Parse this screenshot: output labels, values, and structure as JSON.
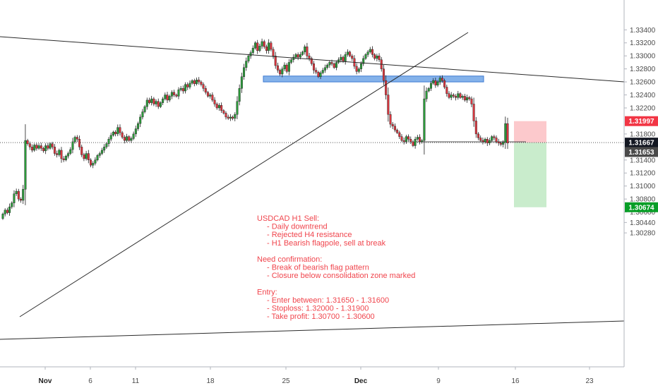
{
  "chart_data": {
    "type": "candlestick",
    "symbol": "USDCAD",
    "timeframe": "H1",
    "y_range": [
      1.282,
      1.3362
    ],
    "y_ticks": [
      "1.33400",
      "1.33200",
      "1.33000",
      "1.32800",
      "1.32600",
      "1.32400",
      "1.32200",
      "1.31800",
      "1.31400",
      "1.31200",
      "1.31000",
      "1.30800",
      "1.30600",
      "1.30440",
      "1.30280"
    ],
    "x_ticks": [
      {
        "label": "Nov",
        "bold": true
      },
      {
        "label": "6",
        "bold": false
      },
      {
        "label": "11",
        "bold": false
      },
      {
        "label": "18",
        "bold": false
      },
      {
        "label": "25",
        "bold": false
      },
      {
        "label": "Dec",
        "bold": true
      },
      {
        "label": "9",
        "bold": false
      },
      {
        "label": "16",
        "bold": false
      },
      {
        "label": "23",
        "bold": false
      }
    ],
    "price_tags": [
      {
        "label": "1.31997",
        "value": 1.31997,
        "color": "#f23645"
      },
      {
        "label": "1.31667",
        "value": 1.31667,
        "color": "#131722"
      },
      {
        "label": "1.31653",
        "value": 1.31653,
        "color": "#4a4a4a"
      },
      {
        "label": "1.30674",
        "value": 1.30674,
        "color": "#089e27"
      }
    ],
    "closes": [
      1.3057,
      1.3063,
      1.3059,
      1.3068,
      1.3074,
      1.3088,
      1.3092,
      1.308,
      1.3078,
      1.3095,
      1.317,
      1.3165,
      1.316,
      1.3155,
      1.3163,
      1.3158,
      1.3162,
      1.3158,
      1.3154,
      1.3162,
      1.3158,
      1.3165,
      1.316,
      1.315,
      1.3148,
      1.3155,
      1.3142,
      1.314,
      1.3146,
      1.315,
      1.3156,
      1.3168,
      1.3175,
      1.3172,
      1.316,
      1.3148,
      1.3142,
      1.315,
      1.314,
      1.3132,
      1.3135,
      1.314,
      1.3147,
      1.315,
      1.3155,
      1.316,
      1.3165,
      1.3172,
      1.3178,
      1.3183,
      1.318,
      1.319,
      1.3182,
      1.3175,
      1.317,
      1.3176,
      1.317,
      1.3173,
      1.318,
      1.3188,
      1.3196,
      1.3206,
      1.3214,
      1.3222,
      1.3232,
      1.3228,
      1.3234,
      1.3226,
      1.323,
      1.3222,
      1.3228,
      1.3234,
      1.324,
      1.3232,
      1.3238,
      1.3244,
      1.324,
      1.3238,
      1.3248,
      1.325,
      1.3246,
      1.3256,
      1.3252,
      1.3258,
      1.3262,
      1.3257,
      1.3263,
      1.326,
      1.3256,
      1.325,
      1.3244,
      1.3238,
      1.324,
      1.3232,
      1.3226,
      1.322,
      1.3224,
      1.3216,
      1.3212,
      1.3206,
      1.3204,
      1.3206,
      1.3204,
      1.321,
      1.323,
      1.325,
      1.3268,
      1.3282,
      1.3292,
      1.33,
      1.3305,
      1.3312,
      1.332,
      1.3308,
      1.3315,
      1.3322,
      1.3314,
      1.3308,
      1.332,
      1.331,
      1.33,
      1.3285,
      1.3278,
      1.3272,
      1.328,
      1.3286,
      1.3276,
      1.329,
      1.3294,
      1.3298,
      1.3302,
      1.3298,
      1.3302,
      1.3306,
      1.3314,
      1.33,
      1.3296,
      1.3288,
      1.3278,
      1.3275,
      1.3268,
      1.3274,
      1.3278,
      1.3282,
      1.3286,
      1.329,
      1.3288,
      1.3282,
      1.329,
      1.3294,
      1.3298,
      1.3292,
      1.3302,
      1.3306,
      1.33,
      1.3296,
      1.3284,
      1.3276,
      1.328,
      1.3288,
      1.3296,
      1.3302,
      1.3306,
      1.331,
      1.3302,
      1.3296,
      1.33,
      1.3294,
      1.328,
      1.3262,
      1.324,
      1.321,
      1.3195,
      1.3192,
      1.3186,
      1.3182,
      1.3176,
      1.317,
      1.3168,
      1.3176,
      1.3172,
      1.3168,
      1.3162,
      1.3172,
      1.3175,
      1.3168,
      1.317,
      1.3234,
      1.3246,
      1.325,
      1.3258,
      1.3262,
      1.3255,
      1.326,
      1.3266,
      1.3262,
      1.3252,
      1.3242,
      1.3236,
      1.324,
      1.3238,
      1.3236,
      1.3242,
      1.3236,
      1.3238,
      1.3232,
      1.3236,
      1.3234,
      1.3226,
      1.32,
      1.318,
      1.3174,
      1.317,
      1.3168,
      1.3172,
      1.3166,
      1.317,
      1.3176,
      1.3174,
      1.3168,
      1.3166,
      1.3164,
      1.3167,
      1.3196,
      1.3166
    ],
    "annotation_lines": [
      {
        "text": "USDCAD H1 Sell:",
        "indent": 0
      },
      {
        "text": "- Daily downtrend",
        "indent": 1
      },
      {
        "text": "- Rejected H4 resistance",
        "indent": 1
      },
      {
        "text": "- H1 Bearish flagpole, sell at break",
        "indent": 1
      },
      {
        "text": "",
        "indent": 0
      },
      {
        "text": "Need confirmation:",
        "indent": 0
      },
      {
        "text": "- Break of bearish flag pattern",
        "indent": 1
      },
      {
        "text": "- Closure below consolidation zone marked",
        "indent": 1
      },
      {
        "text": "",
        "indent": 0
      },
      {
        "text": "Entry:",
        "indent": 0
      },
      {
        "text": "- Enter between: 1.31650 - 1.31600",
        "indent": 1
      },
      {
        "text": "- Stoploss: 1.32000 - 1.31900",
        "indent": 1
      },
      {
        "text": "- Take profit: 1.30700 - 1.30600",
        "indent": 1
      }
    ],
    "resistance_zone": {
      "top": 1.3269,
      "bottom": 1.326
    },
    "colors": {
      "up": "#2b9a3a",
      "down": "#d9363e",
      "zone_fill": "#6ea5e6",
      "zone_border": "#3d7ad1",
      "stop_fill": "#fcc9cc",
      "target_fill": "#c9eccc",
      "trend_line": "#2a2a2a"
    }
  }
}
